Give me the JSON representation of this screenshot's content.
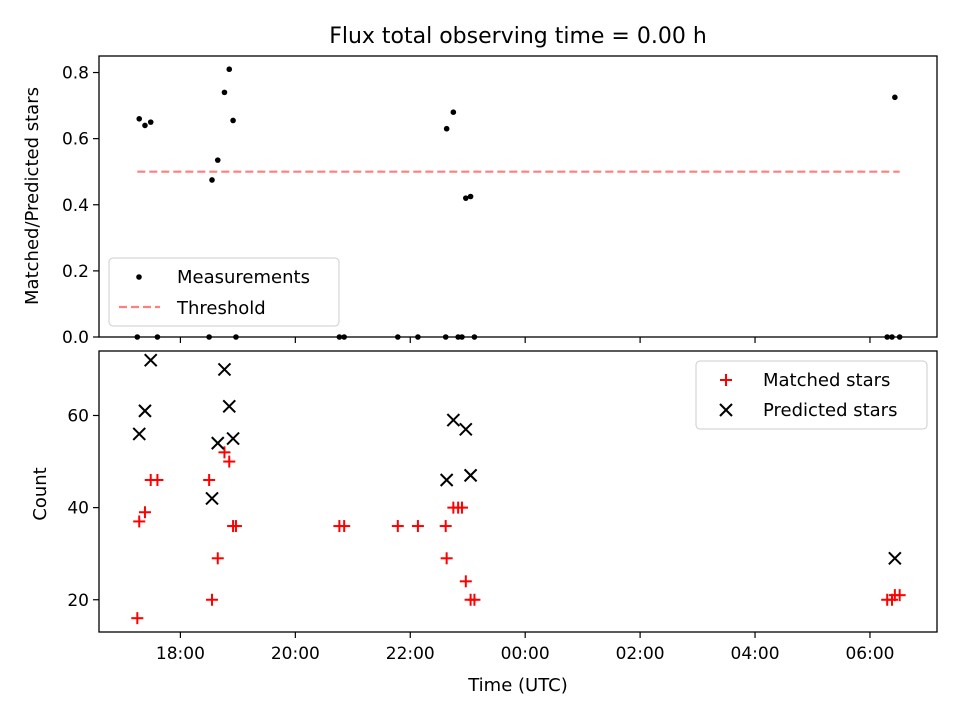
{
  "figure": {
    "title": "Flux total observing time = 0.00 h"
  },
  "chart_data": [
    {
      "type": "scatter",
      "panel": "top",
      "ylabel": "Matched/Predicted stars",
      "xlabel": "",
      "ylim": [
        0,
        0.85
      ],
      "yticks": [
        0.0,
        0.2,
        0.4,
        0.6,
        0.8
      ],
      "ytick_labels": [
        "0.0",
        "0.2",
        "0.4",
        "0.6",
        "0.8"
      ],
      "grid": false,
      "legend_position": "lower-left",
      "series": [
        {
          "name": "Measurements",
          "marker": "dot",
          "color": "#000000",
          "points": [
            {
              "x": "17:15",
              "y": 0.0
            },
            {
              "x": "17:17",
              "y": 0.66
            },
            {
              "x": "17:23",
              "y": 0.64
            },
            {
              "x": "17:29",
              "y": 0.65
            },
            {
              "x": "17:36",
              "y": 0.0
            },
            {
              "x": "18:30",
              "y": 0.0
            },
            {
              "x": "18:33",
              "y": 0.475
            },
            {
              "x": "18:39",
              "y": 0.535
            },
            {
              "x": "18:46",
              "y": 0.74
            },
            {
              "x": "18:51",
              "y": 0.81
            },
            {
              "x": "18:55",
              "y": 0.655
            },
            {
              "x": "18:58",
              "y": 0.0
            },
            {
              "x": "20:46",
              "y": 0.0
            },
            {
              "x": "20:51",
              "y": 0.0
            },
            {
              "x": "21:47",
              "y": 0.0
            },
            {
              "x": "22:08",
              "y": 0.0
            },
            {
              "x": "22:37",
              "y": 0.0
            },
            {
              "x": "22:38",
              "y": 0.63
            },
            {
              "x": "22:45",
              "y": 0.68
            },
            {
              "x": "22:50",
              "y": 0.0
            },
            {
              "x": "22:54",
              "y": 0.0
            },
            {
              "x": "22:58",
              "y": 0.42
            },
            {
              "x": "23:03",
              "y": 0.425
            },
            {
              "x": "23:07",
              "y": 0.0
            },
            {
              "x": "06:18",
              "y": 0.0
            },
            {
              "x": "06:23",
              "y": 0.0
            },
            {
              "x": "06:26",
              "y": 0.725
            },
            {
              "x": "06:31",
              "y": 0.0
            }
          ]
        },
        {
          "name": "Threshold",
          "marker": "dashed-line",
          "color": "#ff7f7f",
          "points": [
            {
              "x": "17:15",
              "y": 0.5
            },
            {
              "x": "06:31",
              "y": 0.5
            }
          ]
        }
      ]
    },
    {
      "type": "scatter",
      "panel": "bottom",
      "xlabel": "Time (UTC)",
      "ylabel": "Count",
      "ylim": [
        13,
        74
      ],
      "yticks": [
        20,
        40,
        60
      ],
      "ytick_labels": [
        "20",
        "40",
        "60"
      ],
      "xticks": [
        "18:00",
        "20:00",
        "22:00",
        "00:00",
        "02:00",
        "04:00",
        "06:00"
      ],
      "grid": false,
      "legend_position": "top-right",
      "series": [
        {
          "name": "Matched stars",
          "marker": "plus",
          "color": "#ff0000",
          "points": [
            {
              "x": "17:15",
              "y": 16
            },
            {
              "x": "17:17",
              "y": 37
            },
            {
              "x": "17:23",
              "y": 39
            },
            {
              "x": "17:29",
              "y": 46
            },
            {
              "x": "17:36",
              "y": 46
            },
            {
              "x": "18:30",
              "y": 46
            },
            {
              "x": "18:33",
              "y": 20
            },
            {
              "x": "18:39",
              "y": 29
            },
            {
              "x": "18:46",
              "y": 52
            },
            {
              "x": "18:51",
              "y": 50
            },
            {
              "x": "18:55",
              "y": 36
            },
            {
              "x": "18:58",
              "y": 36
            },
            {
              "x": "20:46",
              "y": 36
            },
            {
              "x": "20:51",
              "y": 36
            },
            {
              "x": "21:47",
              "y": 36
            },
            {
              "x": "22:08",
              "y": 36
            },
            {
              "x": "22:37",
              "y": 36
            },
            {
              "x": "22:38",
              "y": 29
            },
            {
              "x": "22:45",
              "y": 40
            },
            {
              "x": "22:50",
              "y": 40
            },
            {
              "x": "22:54",
              "y": 40
            },
            {
              "x": "22:58",
              "y": 24
            },
            {
              "x": "23:03",
              "y": 20
            },
            {
              "x": "23:07",
              "y": 20
            },
            {
              "x": "06:18",
              "y": 20
            },
            {
              "x": "06:23",
              "y": 20
            },
            {
              "x": "06:26",
              "y": 21
            },
            {
              "x": "06:31",
              "y": 21
            }
          ]
        },
        {
          "name": "Predicted stars",
          "marker": "x",
          "color": "#000000",
          "points": [
            {
              "x": "17:17",
              "y": 56
            },
            {
              "x": "17:23",
              "y": 61
            },
            {
              "x": "17:29",
              "y": 72
            },
            {
              "x": "18:33",
              "y": 42
            },
            {
              "x": "18:39",
              "y": 54
            },
            {
              "x": "18:46",
              "y": 70
            },
            {
              "x": "18:51",
              "y": 62
            },
            {
              "x": "18:55",
              "y": 55
            },
            {
              "x": "22:38",
              "y": 46
            },
            {
              "x": "22:45",
              "y": 59
            },
            {
              "x": "22:58",
              "y": 57
            },
            {
              "x": "23:03",
              "y": 47
            },
            {
              "x": "06:26",
              "y": 29
            }
          ]
        }
      ]
    }
  ]
}
